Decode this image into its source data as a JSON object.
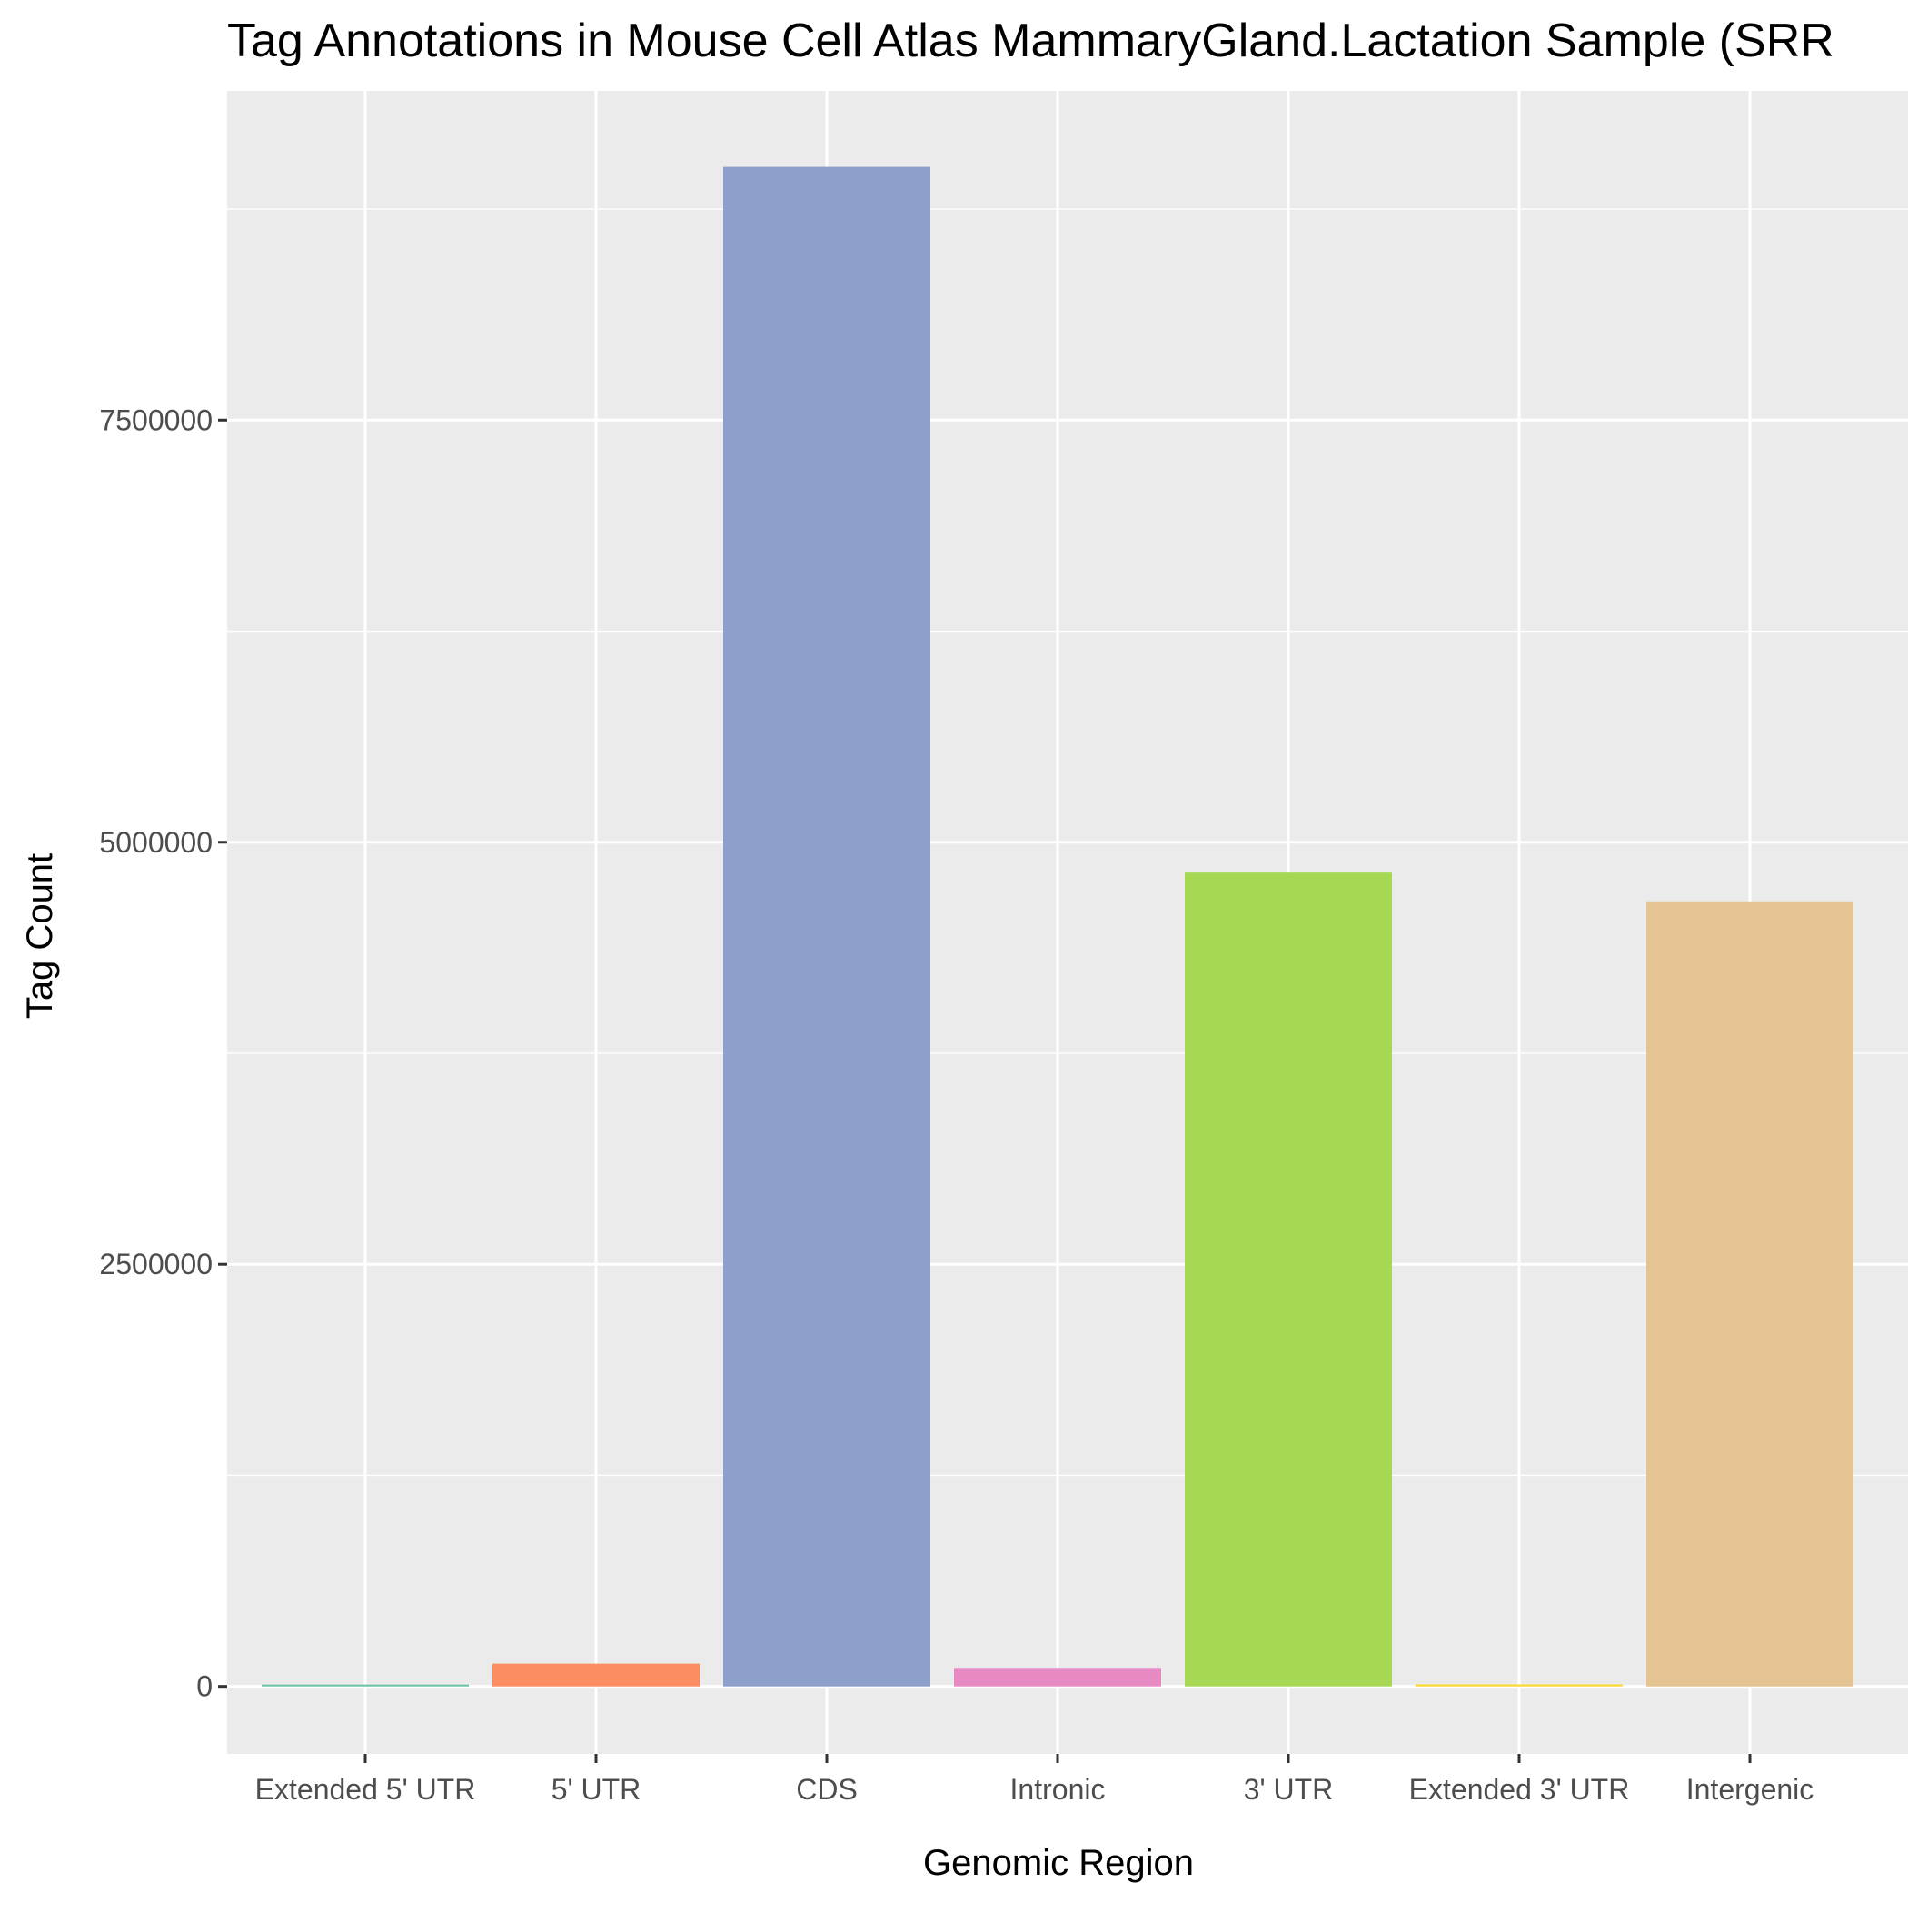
{
  "chart_data": {
    "type": "bar",
    "title": "Tag Annotations in Mouse Cell Atlas MammaryGland.Lactation Sample (SRR",
    "xlabel": "Genomic Region",
    "ylabel": "Tag Count",
    "categories": [
      "Extended 5' UTR",
      "5' UTR",
      "CDS",
      "Intronic",
      "3' UTR",
      "Extended 3' UTR",
      "Intergenic"
    ],
    "values": [
      8000,
      135000,
      9000000,
      110000,
      4820000,
      12000,
      4650000
    ],
    "colors": [
      "#66C2A5",
      "#FC8D62",
      "#8DA0CB",
      "#E78AC3",
      "#A6D854",
      "#FFD92F",
      "#E5C494"
    ],
    "ylim": [
      -400000,
      9450000
    ],
    "yticks": [
      0,
      2500000,
      5000000,
      7500000
    ],
    "ytick_labels": [
      "0",
      "2500000",
      "5000000",
      "7500000"
    ],
    "panel_background": "#EBEBEB",
    "grid": true,
    "legend": "none"
  }
}
